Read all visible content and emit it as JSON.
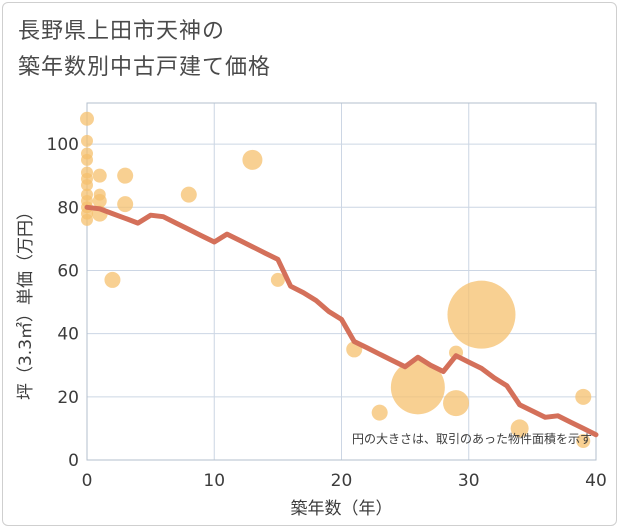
{
  "header": {
    "title_line1": "長野県上田市天神の",
    "title_line2": "築年数別中古戸建て価格"
  },
  "chart_data": {
    "type": "scatter",
    "title": "長野県上田市天神の築年数別中古戸建て価格",
    "xlabel": "築年数（年）",
    "ylabel": "坪（3.3㎡）単価（万円）",
    "xlim": [
      0,
      40
    ],
    "ylim": [
      0,
      113
    ],
    "xticks": [
      0,
      10,
      20,
      30,
      40
    ],
    "yticks": [
      0,
      20,
      40,
      60,
      80,
      100
    ],
    "grid": true,
    "note": "円の大きさは、取引のあった物件面積を示す",
    "colors": {
      "bubble": "#f5c06e",
      "line": "#d4705a",
      "grid": "#ccd6e4",
      "frame": "#b3bfcc"
    },
    "bubbles": [
      {
        "x": 0,
        "y": 108,
        "size": 7
      },
      {
        "x": 0,
        "y": 101,
        "size": 6
      },
      {
        "x": 0,
        "y": 97,
        "size": 6
      },
      {
        "x": 0,
        "y": 95,
        "size": 6
      },
      {
        "x": 0,
        "y": 91,
        "size": 6
      },
      {
        "x": 0,
        "y": 89,
        "size": 6
      },
      {
        "x": 0,
        "y": 87,
        "size": 6
      },
      {
        "x": 0,
        "y": 84,
        "size": 6
      },
      {
        "x": 0,
        "y": 82,
        "size": 6
      },
      {
        "x": 0,
        "y": 80,
        "size": 6
      },
      {
        "x": 0,
        "y": 78,
        "size": 6
      },
      {
        "x": 0,
        "y": 76,
        "size": 6
      },
      {
        "x": 1,
        "y": 90,
        "size": 7
      },
      {
        "x": 1,
        "y": 84,
        "size": 6
      },
      {
        "x": 1,
        "y": 82,
        "size": 7
      },
      {
        "x": 1,
        "y": 78,
        "size": 8
      },
      {
        "x": 2,
        "y": 57,
        "size": 8
      },
      {
        "x": 3,
        "y": 90,
        "size": 8
      },
      {
        "x": 3,
        "y": 81,
        "size": 8
      },
      {
        "x": 8,
        "y": 84,
        "size": 8
      },
      {
        "x": 13,
        "y": 95,
        "size": 10
      },
      {
        "x": 15,
        "y": 57,
        "size": 7
      },
      {
        "x": 21,
        "y": 35,
        "size": 8
      },
      {
        "x": 23,
        "y": 15,
        "size": 8
      },
      {
        "x": 26,
        "y": 23,
        "size": 27
      },
      {
        "x": 29,
        "y": 34,
        "size": 7
      },
      {
        "x": 29,
        "y": 18,
        "size": 13
      },
      {
        "x": 31,
        "y": 46,
        "size": 34
      },
      {
        "x": 34,
        "y": 10,
        "size": 9
      },
      {
        "x": 39,
        "y": 20,
        "size": 8
      },
      {
        "x": 39,
        "y": 6,
        "size": 7
      }
    ],
    "trend": {
      "x": [
        0,
        1,
        2,
        3,
        4,
        5,
        6,
        7,
        8,
        9,
        10,
        11,
        12,
        13,
        14,
        15,
        16,
        17,
        18,
        19,
        20,
        21,
        22,
        23,
        24,
        25,
        26,
        27,
        28,
        29,
        30,
        31,
        32,
        33,
        34,
        35,
        36,
        37,
        38,
        39,
        40
      ],
      "y": [
        80,
        79.5,
        78,
        76.5,
        75,
        77.5,
        77,
        75,
        73,
        71,
        69,
        71.5,
        69.5,
        67.5,
        65.5,
        63.5,
        55,
        53,
        50.5,
        47,
        44.5,
        37.5,
        35.5,
        33.5,
        31.5,
        29.5,
        32.5,
        30,
        28,
        33,
        31,
        29,
        26,
        23.5,
        17.5,
        15.5,
        13.5,
        14,
        12,
        10,
        8
      ]
    }
  }
}
